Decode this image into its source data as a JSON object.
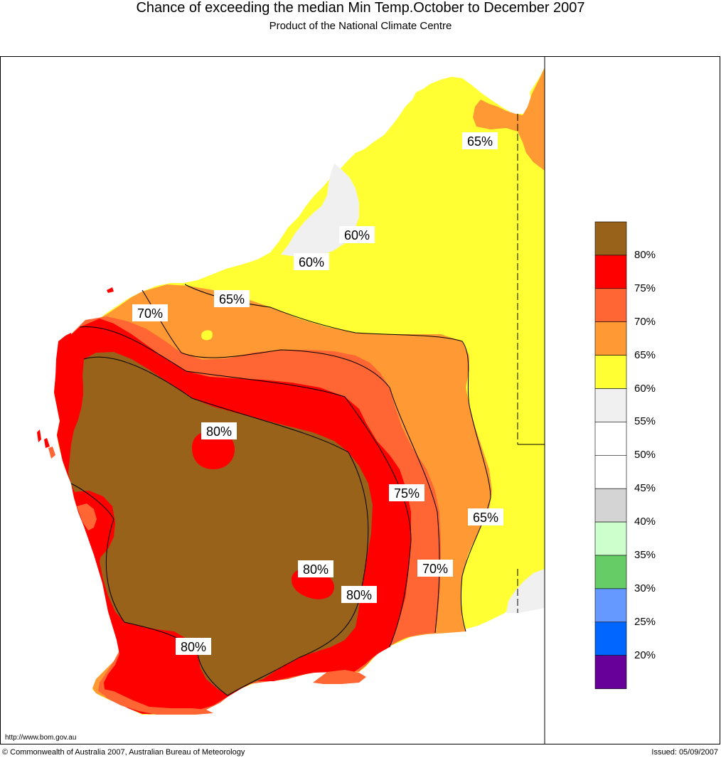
{
  "header": {
    "title": "Chance of exceeding the median Min Temp.October to December 2007",
    "subtitle": "Product of the National Climate Centre"
  },
  "colors": {
    "p80_plus": "#99621b",
    "p75_80": "#ff0000",
    "p70_75": "#ff6633",
    "p65_70": "#ff9933",
    "p60_65": "#ffff33",
    "p55_60": "#f0f0f0",
    "p50_55": "#ffffff",
    "p45_50": "#ffffff",
    "p40_45": "#d4d4d4",
    "p35_40": "#ccffcc",
    "p30_35": "#66cc66",
    "p25_30": "#6699ff",
    "p20_25": "#0066ff",
    "p_below_20": "#660099"
  },
  "map_labels": {
    "kimberley_65": "65%",
    "pilbara_60a": "60%",
    "pilbara_60b": "60%",
    "gascoyne_65": "65%",
    "coast_70": "70%",
    "inland_80": "80%",
    "east_75": "75%",
    "east_65": "65%",
    "south_80a": "80%",
    "south_80b": "80%",
    "east_70": "70%",
    "southwest_80": "80%"
  },
  "legend": {
    "labels": [
      "80%",
      "75%",
      "70%",
      "65%",
      "60%",
      "55%",
      "50%",
      "45%",
      "40%",
      "35%",
      "30%",
      "25%",
      "20%"
    ],
    "colors": [
      "#99621b",
      "#ff0000",
      "#ff6633",
      "#ff9933",
      "#ffff33",
      "#f0f0f0",
      "#ffffff",
      "#ffffff",
      "#d4d4d4",
      "#ccffcc",
      "#66cc66",
      "#6699ff",
      "#0066ff",
      "#660099"
    ]
  },
  "footer": {
    "url": "http://www.bom.gov.au",
    "copyright": "© Commonwealth of Australia 2007, Australian Bureau of Meteorology",
    "issued": "Issued: 05/09/2007"
  }
}
